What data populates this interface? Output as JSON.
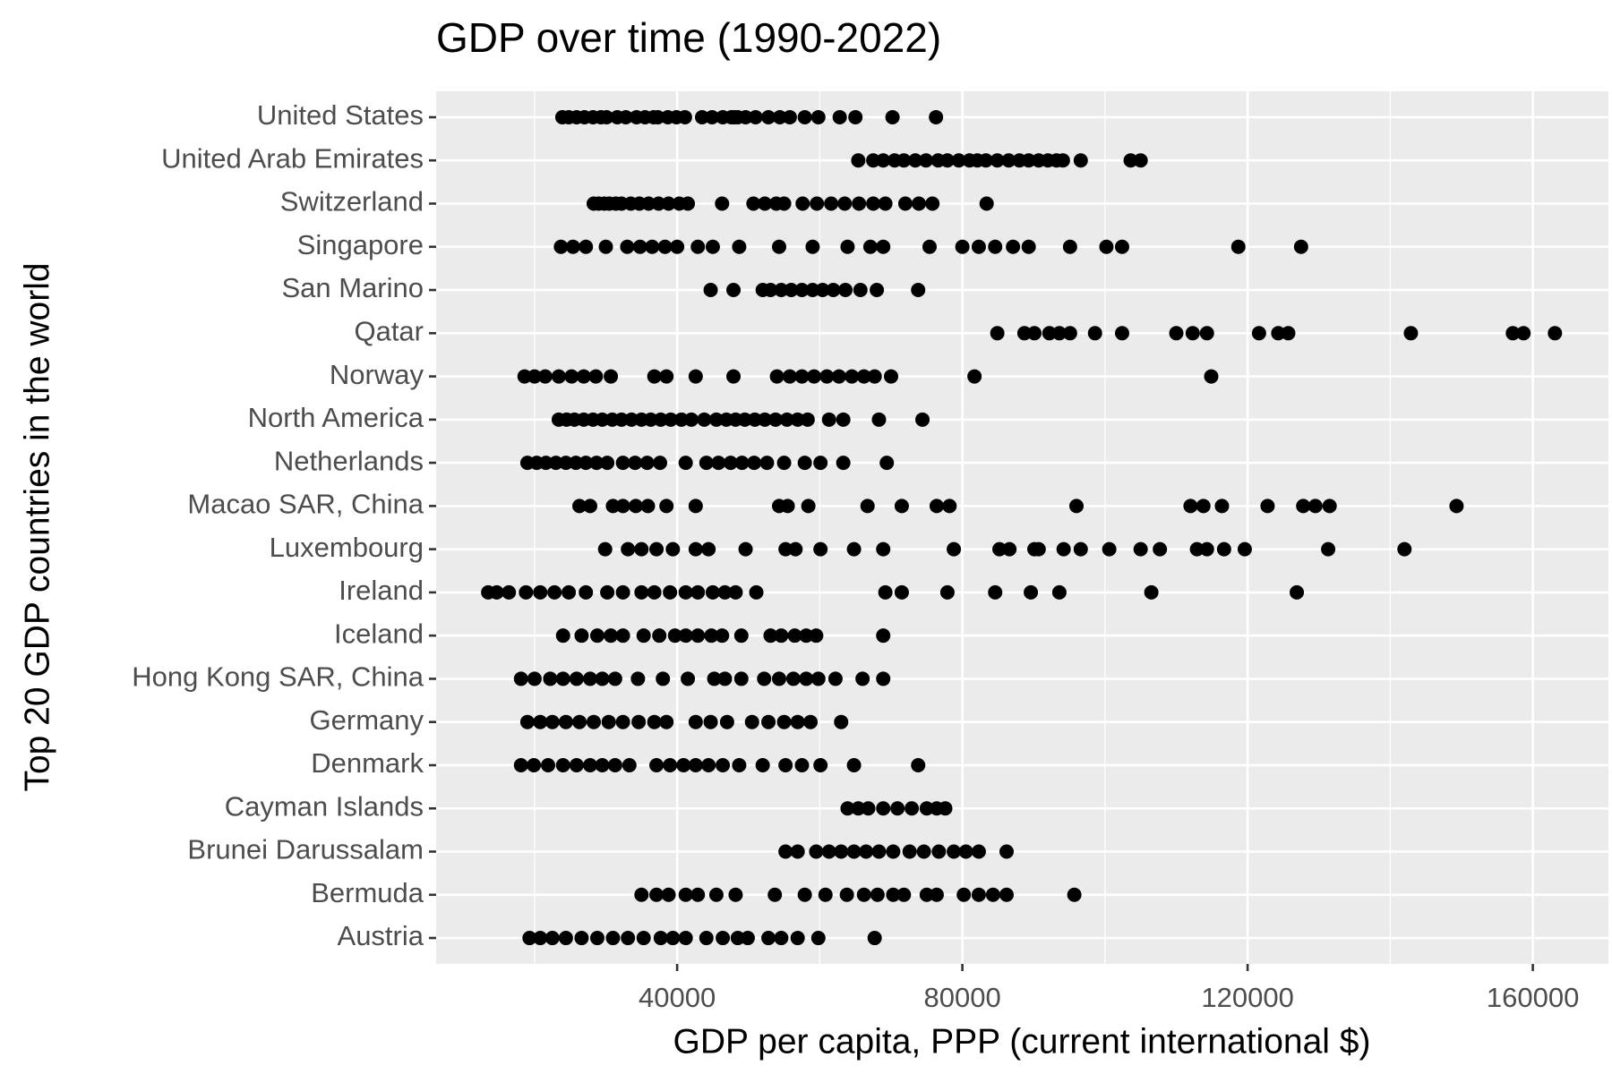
{
  "chart_data": {
    "type": "scatter",
    "title": "GDP over time (1990-2022)",
    "x_label": "GDP per capita, PPP (current international $)",
    "y_label": "Top 20 GDP countries in the world",
    "categories": [
      "United States",
      "United Arab Emirates",
      "Switzerland",
      "Singapore",
      "San Marino",
      "Qatar",
      "Norway",
      "North America",
      "Netherlands",
      "Macao SAR, China",
      "Luxembourg",
      "Ireland",
      "Iceland",
      "Hong Kong SAR, China",
      "Germany",
      "Denmark",
      "Cayman Islands",
      "Brunei Darussalam",
      "Bermuda",
      "Austria"
    ],
    "values": [
      [
        23900,
        24800,
        25900,
        27000,
        28200,
        29300,
        30100,
        31600,
        32800,
        34300,
        35500,
        36700,
        37300,
        38700,
        39900,
        41100,
        43500,
        44900,
        46400,
        47600,
        48000,
        48500,
        49600,
        51000,
        52800,
        54400,
        55800,
        57900,
        59800,
        62800,
        65000,
        70200,
        76300
      ],
      [
        65400,
        67500,
        68900,
        70500,
        71800,
        73400,
        74900,
        76600,
        77900,
        79500,
        81000,
        82100,
        83300,
        84900,
        86500,
        88000,
        89300,
        90700,
        92000,
        93200,
        94100,
        96600,
        103600,
        105000
      ],
      [
        28300,
        29000,
        29800,
        30500,
        31400,
        32200,
        33500,
        34700,
        36000,
        37400,
        38800,
        40300,
        41500,
        46300,
        50700,
        52300,
        53900,
        55000,
        57600,
        59600,
        61600,
        63500,
        65500,
        67500,
        69200,
        72000,
        73900,
        75800,
        83400
      ],
      [
        23700,
        25400,
        27200,
        30000,
        33000,
        34800,
        36500,
        38300,
        40000,
        42900,
        45000,
        48700,
        54300,
        59000,
        63900,
        67100,
        68900,
        75400,
        80000,
        82300,
        84600,
        87100,
        89300,
        95100,
        100200,
        102400,
        118700,
        127500
      ],
      [
        44700,
        47900,
        52000,
        53100,
        54600,
        56000,
        57500,
        59000,
        60400,
        61900,
        63600,
        65700,
        68000,
        73800
      ],
      [
        84900,
        88700,
        90100,
        92200,
        93600,
        95100,
        98600,
        102400,
        110000,
        112300,
        114300,
        121600,
        124300,
        125700,
        142900,
        157200,
        158700,
        163100
      ],
      [
        18600,
        20000,
        21500,
        23400,
        25200,
        26900,
        28600,
        30700,
        36800,
        38500,
        42600,
        47900,
        54000,
        55800,
        57500,
        59200,
        61000,
        62700,
        64500,
        66200,
        67700,
        70000,
        81700,
        114900
      ],
      [
        23400,
        24500,
        25600,
        26900,
        28200,
        29500,
        30900,
        32200,
        33600,
        35000,
        36300,
        37700,
        39100,
        40600,
        42000,
        43800,
        45500,
        46900,
        48200,
        49500,
        50900,
        52300,
        53800,
        55400,
        56900,
        58300,
        61300,
        63300,
        68300,
        74400
      ],
      [
        19000,
        20300,
        21600,
        23000,
        24400,
        25800,
        27200,
        28700,
        30200,
        32400,
        34100,
        35800,
        37600,
        41200,
        44100,
        45800,
        47500,
        49100,
        50800,
        52600,
        55000,
        57900,
        60100,
        63300,
        69400
      ],
      [
        26300,
        27800,
        31000,
        32400,
        34200,
        35900,
        38500,
        42600,
        54300,
        55500,
        58400,
        66700,
        71500,
        76400,
        78200,
        96000,
        112000,
        113800,
        116400,
        122800,
        127800,
        129500,
        131500,
        149300
      ],
      [
        29900,
        33100,
        35000,
        37100,
        39400,
        42600,
        44400,
        49600,
        55200,
        56600,
        60100,
        64800,
        68900,
        78800,
        85200,
        86600,
        90100,
        90700,
        94200,
        96600,
        100600,
        105000,
        107700,
        112900,
        114300,
        116700,
        119600,
        131300,
        142000
      ],
      [
        13500,
        14700,
        16400,
        18800,
        20800,
        22800,
        24800,
        27200,
        30200,
        32400,
        35000,
        36800,
        39000,
        41200,
        42900,
        45000,
        46700,
        48200,
        51100,
        69200,
        71500,
        77900,
        84600,
        89600,
        93600,
        106500,
        126900
      ],
      [
        24000,
        26600,
        28800,
        30700,
        32400,
        35300,
        37500,
        39700,
        41200,
        42900,
        44800,
        46300,
        49000,
        53100,
        54600,
        56500,
        58100,
        59500,
        68900
      ],
      [
        18100,
        20000,
        22200,
        24000,
        25900,
        27800,
        29500,
        31300,
        34500,
        38000,
        41500,
        45200,
        46700,
        49000,
        52200,
        54300,
        56300,
        58100,
        59800,
        62200,
        66000,
        68900
      ],
      [
        19000,
        20800,
        22500,
        24400,
        26300,
        28300,
        30400,
        32400,
        34600,
        36800,
        38500,
        42600,
        44700,
        47000,
        50500,
        52800,
        55000,
        56900,
        58700,
        63000
      ],
      [
        18100,
        19900,
        21900,
        24000,
        25900,
        27800,
        29500,
        31300,
        33300,
        37100,
        39000,
        40900,
        42600,
        44400,
        46400,
        48700,
        52000,
        55200,
        57500,
        60100,
        64800,
        73800
      ],
      [
        63900,
        65400,
        66800,
        68900,
        70900,
        72900,
        75000,
        76400,
        77600
      ],
      [
        55200,
        56900,
        59500,
        61300,
        63000,
        64800,
        66500,
        68300,
        70300,
        72600,
        74600,
        76700,
        78800,
        80500,
        82300,
        86200
      ],
      [
        35000,
        37100,
        38800,
        41200,
        42900,
        45500,
        48200,
        53700,
        57900,
        60800,
        63800,
        66200,
        68100,
        70300,
        71800,
        75000,
        76400,
        80200,
        82300,
        84300,
        86200,
        95700
      ],
      [
        19300,
        20800,
        22500,
        24400,
        26600,
        28800,
        31000,
        33100,
        35300,
        37700,
        39400,
        41200,
        44100,
        46400,
        48500,
        49900,
        52800,
        54600,
        56900,
        59800,
        67700
      ]
    ],
    "color": "#000000",
    "xlim": [
      6200,
      170600
    ],
    "xticks": [
      40000,
      80000,
      120000,
      160000
    ],
    "grid": true
  }
}
